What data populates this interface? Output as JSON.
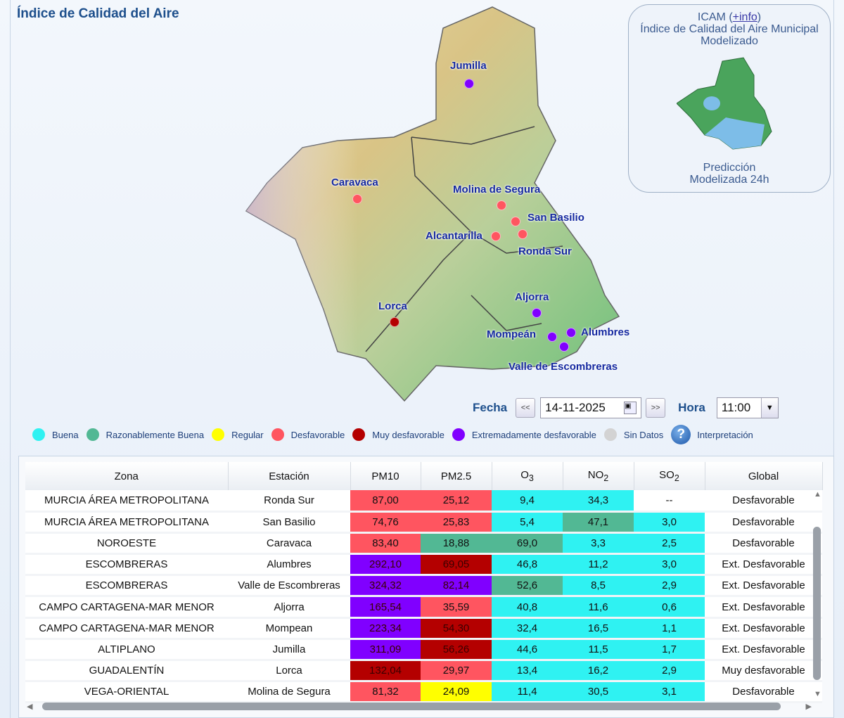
{
  "title": "Índice de Calidad del Aire",
  "colors": {
    "buena": "#2ff2f2",
    "razonable": "#52b894",
    "regular": "#ffff00",
    "desfavorable": "#ff5560",
    "muy": "#b40000",
    "extremo": "#8000ff",
    "sin_datos": "#d3d3d3"
  },
  "map": {
    "stations": [
      {
        "name": "Jumilla",
        "level": "extremo"
      },
      {
        "name": "Caravaca",
        "level": "desfavorable"
      },
      {
        "name": "Molina de Segura",
        "level": "desfavorable"
      },
      {
        "name": "San Basilio",
        "level": "desfavorable"
      },
      {
        "name": "Alcantarilla",
        "level": "desfavorable"
      },
      {
        "name": "Ronda Sur",
        "level": "desfavorable"
      },
      {
        "name": "Lorca",
        "level": "muy"
      },
      {
        "name": "Aljorra",
        "level": "extremo"
      },
      {
        "name": "Mompeán",
        "level": "extremo"
      },
      {
        "name": "Alumbres",
        "level": "extremo"
      },
      {
        "name": "Valle de Escombreras",
        "level": "extremo"
      }
    ]
  },
  "icam": {
    "prefix": "ICAM (",
    "link": "+info",
    "suffix": ")",
    "line2": "Índice de Calidad del Aire Municipal",
    "line3": "Modelizado",
    "pred1": "Predicción",
    "pred2": "Modelizada 24h"
  },
  "controls": {
    "fecha_label": "Fecha",
    "prev": "<<",
    "date": "14-11-2025",
    "next": ">>",
    "hora_label": "Hora",
    "hora": "11:00"
  },
  "legend": [
    {
      "label": "Buena",
      "level": "buena"
    },
    {
      "label": "Razonablemente Buena",
      "level": "razonable"
    },
    {
      "label": "Regular",
      "level": "regular"
    },
    {
      "label": "Desfavorable",
      "level": "desfavorable"
    },
    {
      "label": "Muy desfavorable",
      "level": "muy"
    },
    {
      "label": "Extremadamente desfavorable",
      "level": "extremo"
    },
    {
      "label": "Sin Datos",
      "level": "sin_datos"
    }
  ],
  "interpretacion": "Interpretación",
  "table": {
    "headers": [
      "Zona",
      "Estación",
      "PM10",
      "PM2.5",
      "O",
      "NO",
      "SO",
      "Global"
    ],
    "subscripts": [
      "",
      "",
      "",
      "",
      "3",
      "2",
      "2",
      ""
    ],
    "rows": [
      {
        "zona": "MURCIA ÁREA METROPOLITANA",
        "estacion": "Ronda Sur",
        "cells": [
          [
            "87,00",
            "desfavorable"
          ],
          [
            "25,12",
            "desfavorable"
          ],
          [
            "9,4",
            "buena"
          ],
          [
            "34,3",
            "buena"
          ],
          [
            "--",
            ""
          ]
        ],
        "global": "Desfavorable"
      },
      {
        "zona": "MURCIA ÁREA METROPOLITANA",
        "estacion": "San Basilio",
        "cells": [
          [
            "74,76",
            "desfavorable"
          ],
          [
            "25,83",
            "desfavorable"
          ],
          [
            "5,4",
            "buena"
          ],
          [
            "47,1",
            "razonable"
          ],
          [
            "3,0",
            "buena"
          ]
        ],
        "global": "Desfavorable"
      },
      {
        "zona": "NOROESTE",
        "estacion": "Caravaca",
        "cells": [
          [
            "83,40",
            "desfavorable"
          ],
          [
            "18,88",
            "razonable"
          ],
          [
            "69,0",
            "razonable"
          ],
          [
            "3,3",
            "buena"
          ],
          [
            "2,5",
            "buena"
          ]
        ],
        "global": "Desfavorable"
      },
      {
        "zona": "ESCOMBRERAS",
        "estacion": "Alumbres",
        "cells": [
          [
            "292,10",
            "extremo"
          ],
          [
            "69,05",
            "muy"
          ],
          [
            "46,8",
            "buena"
          ],
          [
            "11,2",
            "buena"
          ],
          [
            "3,0",
            "buena"
          ]
        ],
        "global": "Ext. Desfavorable"
      },
      {
        "zona": "ESCOMBRERAS",
        "estacion": "Valle de Escombreras",
        "cells": [
          [
            "324,32",
            "extremo"
          ],
          [
            "82,14",
            "extremo"
          ],
          [
            "52,6",
            "razonable"
          ],
          [
            "8,5",
            "buena"
          ],
          [
            "2,9",
            "buena"
          ]
        ],
        "global": "Ext. Desfavorable"
      },
      {
        "zona": "CAMPO CARTAGENA-MAR MENOR",
        "estacion": "Aljorra",
        "cells": [
          [
            "165,54",
            "extremo"
          ],
          [
            "35,59",
            "desfavorable"
          ],
          [
            "40,8",
            "buena"
          ],
          [
            "11,6",
            "buena"
          ],
          [
            "0,6",
            "buena"
          ]
        ],
        "global": "Ext. Desfavorable"
      },
      {
        "zona": "CAMPO CARTAGENA-MAR MENOR",
        "estacion": "Mompean",
        "cells": [
          [
            "223,34",
            "extremo"
          ],
          [
            "54,30",
            "muy"
          ],
          [
            "32,4",
            "buena"
          ],
          [
            "16,5",
            "buena"
          ],
          [
            "1,1",
            "buena"
          ]
        ],
        "global": "Ext. Desfavorable"
      },
      {
        "zona": "ALTIPLANO",
        "estacion": "Jumilla",
        "cells": [
          [
            "311,09",
            "extremo"
          ],
          [
            "56,26",
            "muy"
          ],
          [
            "44,6",
            "buena"
          ],
          [
            "11,5",
            "buena"
          ],
          [
            "1,7",
            "buena"
          ]
        ],
        "global": "Ext. Desfavorable"
      },
      {
        "zona": "GUADALENTÍN",
        "estacion": "Lorca",
        "cells": [
          [
            "132,04",
            "muy"
          ],
          [
            "29,97",
            "desfavorable"
          ],
          [
            "13,4",
            "buena"
          ],
          [
            "16,2",
            "buena"
          ],
          [
            "2,9",
            "buena"
          ]
        ],
        "global": "Muy desfavorable"
      },
      {
        "zona": "VEGA-ORIENTAL",
        "estacion": "Molina de Segura",
        "cells": [
          [
            "81,32",
            "desfavorable"
          ],
          [
            "24,09",
            "regular"
          ],
          [
            "11,4",
            "buena"
          ],
          [
            "30,5",
            "buena"
          ],
          [
            "3,1",
            "buena"
          ]
        ],
        "global": "Desfavorable"
      }
    ]
  }
}
